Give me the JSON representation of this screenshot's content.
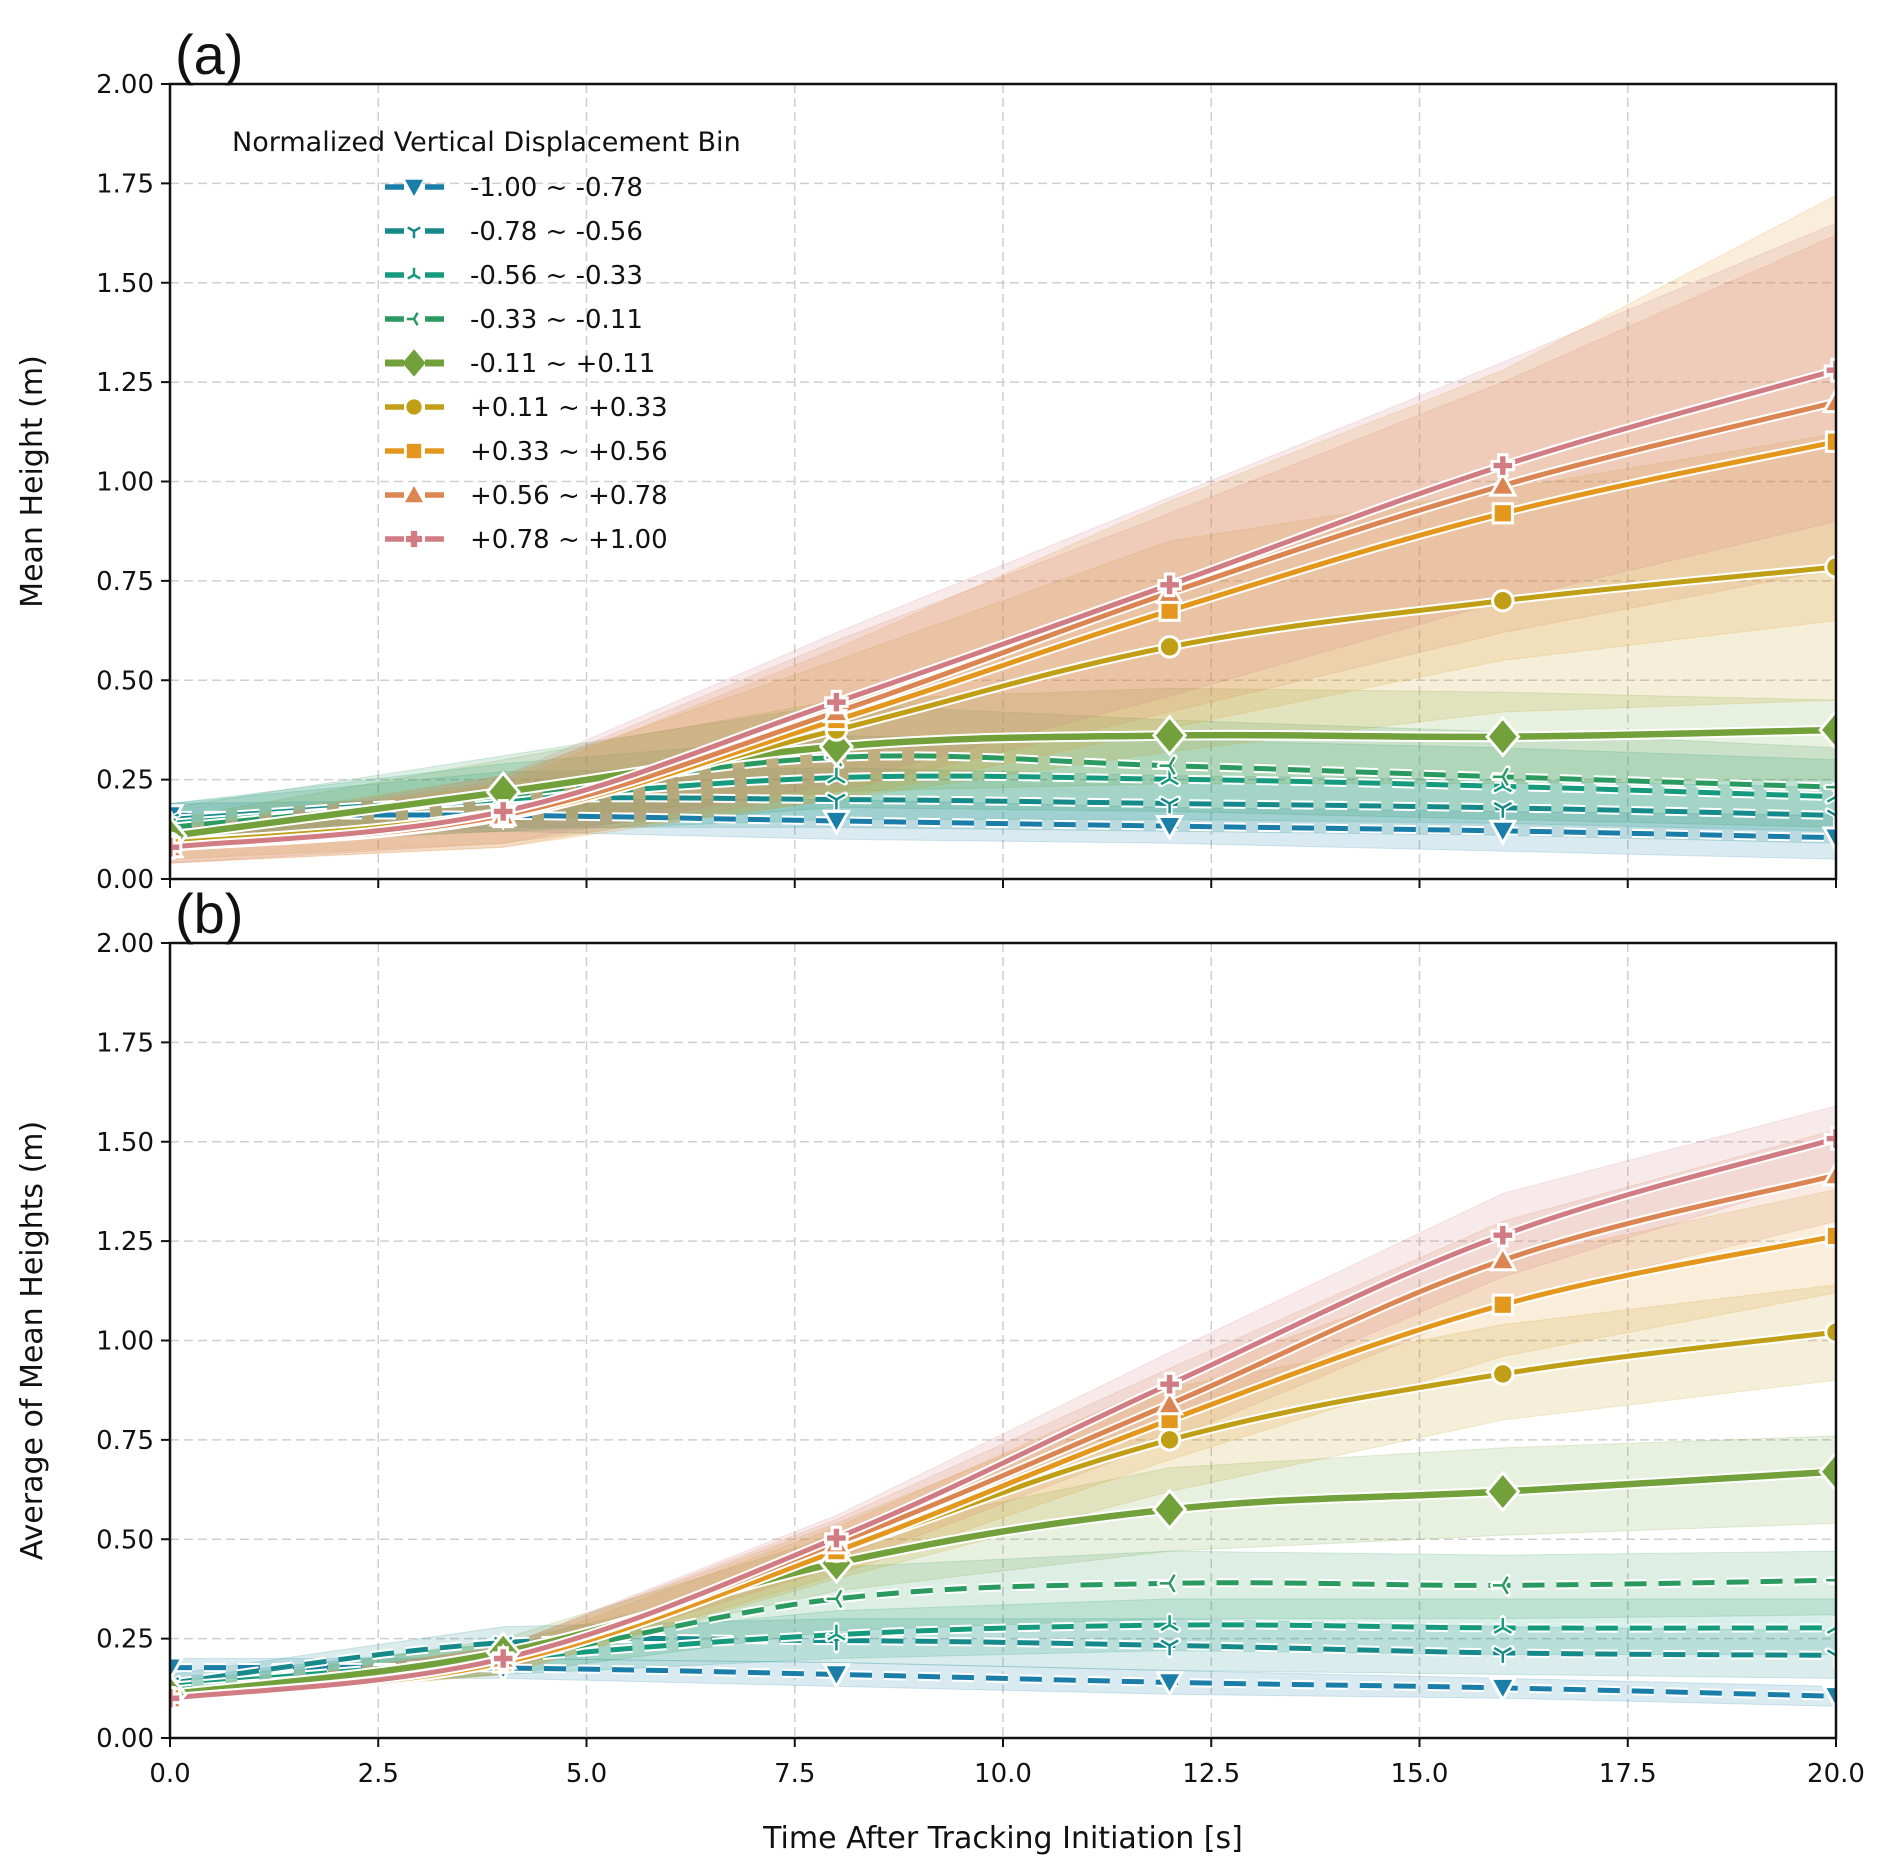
{
  "chart_data": [
    {
      "panel_label": "(a)",
      "type": "line",
      "ylabel": "Mean Height (m)",
      "xlabel": "",
      "xlim": [
        0,
        20
      ],
      "ylim": [
        0,
        2
      ],
      "xticks": [
        "0.0",
        "2.5",
        "5.0",
        "7.5",
        "10.0",
        "12.5",
        "15.0",
        "17.5",
        "20.0"
      ],
      "xtick_labels_visible": false,
      "yticks": [
        "0.00",
        "0.25",
        "0.50",
        "0.75",
        "1.00",
        "1.25",
        "1.50",
        "1.75",
        "2.00"
      ],
      "grid": true,
      "legend": {
        "title": "Normalized Vertical Displacement Bin",
        "placement": "top-left"
      },
      "x": [
        0,
        4,
        8,
        12,
        16,
        20
      ],
      "series": [
        {
          "name": "-1.00 ~ -0.78",
          "color": "#1b7ea8",
          "marker": "triangle-down",
          "style": "dashed",
          "values": [
            0.16,
            0.16,
            0.146,
            0.133,
            0.121,
            0.104
          ],
          "ci_low": [
            0.12,
            0.12,
            0.1,
            0.09,
            0.07,
            0.05
          ],
          "ci_high": [
            0.19,
            0.2,
            0.2,
            0.18,
            0.17,
            0.16
          ]
        },
        {
          "name": "-0.78 ~ -0.56",
          "color": "#168a8a",
          "marker": "tri-down",
          "style": "dashed",
          "values": [
            0.15,
            0.2,
            0.2,
            0.19,
            0.179,
            0.16
          ],
          "ci_low": [
            0.1,
            0.13,
            0.13,
            0.12,
            0.11,
            0.09
          ],
          "ci_high": [
            0.19,
            0.27,
            0.28,
            0.26,
            0.25,
            0.23
          ]
        },
        {
          "name": "-0.56 ~ -0.33",
          "color": "#159a7e",
          "marker": "tri-up",
          "style": "dashed",
          "values": [
            0.14,
            0.2,
            0.255,
            0.251,
            0.233,
            0.207
          ],
          "ci_low": [
            0.09,
            0.12,
            0.15,
            0.15,
            0.14,
            0.12
          ],
          "ci_high": [
            0.19,
            0.29,
            0.36,
            0.35,
            0.33,
            0.3
          ]
        },
        {
          "name": "-0.33 ~ -0.11",
          "color": "#2a9a60",
          "marker": "tri-left",
          "style": "dashed",
          "values": [
            0.13,
            0.21,
            0.306,
            0.285,
            0.257,
            0.231
          ],
          "ci_low": [
            0.08,
            0.12,
            0.18,
            0.17,
            0.15,
            0.13
          ],
          "ci_high": [
            0.18,
            0.31,
            0.44,
            0.4,
            0.37,
            0.33
          ]
        },
        {
          "name": "-0.11 ~ +0.11",
          "color": "#72a03a",
          "marker": "diamond",
          "style": "solid",
          "values": [
            0.108,
            0.219,
            0.333,
            0.361,
            0.358,
            0.375
          ],
          "ci_low": [
            0.07,
            0.14,
            0.22,
            0.24,
            0.24,
            0.25
          ],
          "ci_high": [
            0.15,
            0.3,
            0.45,
            0.48,
            0.47,
            0.45
          ]
        },
        {
          "name": "+0.11 ~ +0.33",
          "color": "#c09e15",
          "marker": "circle",
          "style": "solid",
          "values": [
            0.09,
            0.17,
            0.375,
            0.584,
            0.7,
            0.785
          ],
          "ci_low": [
            0.05,
            0.09,
            0.2,
            0.32,
            0.42,
            0.45
          ],
          "ci_high": [
            0.13,
            0.26,
            0.55,
            0.85,
            0.98,
            1.12
          ]
        },
        {
          "name": "+0.33 ~ +0.56",
          "color": "#e3971d",
          "marker": "square",
          "style": "solid",
          "values": [
            0.08,
            0.156,
            0.4,
            0.675,
            0.92,
            1.1
          ],
          "ci_low": [
            0.04,
            0.08,
            0.2,
            0.38,
            0.55,
            0.65
          ],
          "ci_high": [
            0.12,
            0.24,
            0.58,
            0.95,
            1.28,
            1.72
          ]
        },
        {
          "name": "+0.56 ~ +0.78",
          "color": "#db8552",
          "marker": "triangle-up",
          "style": "solid",
          "values": [
            0.08,
            0.16,
            0.42,
            0.72,
            0.99,
            1.2
          ],
          "ci_low": [
            0.04,
            0.08,
            0.22,
            0.42,
            0.62,
            0.78
          ],
          "ci_high": [
            0.12,
            0.25,
            0.6,
            0.92,
            1.25,
            1.62
          ]
        },
        {
          "name": "+0.78 ~ +1.00",
          "color": "#d17b82",
          "marker": "plus",
          "style": "solid",
          "values": [
            0.08,
            0.17,
            0.445,
            0.74,
            1.04,
            1.28
          ],
          "ci_low": [
            0.04,
            0.09,
            0.24,
            0.46,
            0.7,
            0.9
          ],
          "ci_high": [
            0.12,
            0.26,
            0.62,
            0.96,
            1.3,
            1.65
          ]
        }
      ]
    },
    {
      "panel_label": "(b)",
      "type": "line",
      "ylabel": "Average of Mean Heights (m)",
      "xlabel": "Time After Tracking Initiation [s]",
      "xlim": [
        0,
        20
      ],
      "ylim": [
        0,
        2
      ],
      "xticks": [
        "0.0",
        "2.5",
        "5.0",
        "7.5",
        "10.0",
        "12.5",
        "15.0",
        "17.5",
        "20.0"
      ],
      "xtick_labels_visible": true,
      "yticks": [
        "0.00",
        "0.25",
        "0.50",
        "0.75",
        "1.00",
        "1.25",
        "1.50",
        "1.75",
        "2.00"
      ],
      "grid": true,
      "x": [
        0,
        4,
        8,
        12,
        16,
        20
      ],
      "series": [
        {
          "name": "-1.00 ~ -0.78",
          "color": "#1b7ea8",
          "marker": "triangle-down",
          "style": "dashed",
          "values": [
            0.177,
            0.176,
            0.16,
            0.14,
            0.126,
            0.105
          ],
          "ci_low": [
            0.15,
            0.15,
            0.13,
            0.11,
            0.1,
            0.08
          ],
          "ci_high": [
            0.2,
            0.2,
            0.19,
            0.17,
            0.15,
            0.13
          ]
        },
        {
          "name": "-0.78 ~ -0.56",
          "color": "#168a8a",
          "marker": "tri-down",
          "style": "dashed",
          "values": [
            0.138,
            0.24,
            0.245,
            0.233,
            0.214,
            0.208
          ],
          "ci_low": [
            0.12,
            0.2,
            0.19,
            0.17,
            0.16,
            0.15
          ],
          "ci_high": [
            0.16,
            0.28,
            0.3,
            0.3,
            0.28,
            0.27
          ]
        },
        {
          "name": "-0.56 ~ -0.33",
          "color": "#159a7e",
          "marker": "tri-up",
          "style": "dashed",
          "values": [
            0.13,
            0.2,
            0.26,
            0.284,
            0.277,
            0.277
          ],
          "ci_low": [
            0.11,
            0.16,
            0.2,
            0.22,
            0.21,
            0.21
          ],
          "ci_high": [
            0.15,
            0.24,
            0.32,
            0.35,
            0.35,
            0.35
          ]
        },
        {
          "name": "-0.33 ~ -0.11",
          "color": "#2a9a60",
          "marker": "tri-left",
          "style": "dashed",
          "values": [
            0.12,
            0.2,
            0.35,
            0.389,
            0.384,
            0.397
          ],
          "ci_low": [
            0.1,
            0.16,
            0.27,
            0.3,
            0.3,
            0.31
          ],
          "ci_high": [
            0.14,
            0.24,
            0.43,
            0.47,
            0.46,
            0.47
          ]
        },
        {
          "name": "-0.11 ~ +0.11",
          "color": "#72a03a",
          "marker": "diamond",
          "style": "solid",
          "values": [
            0.11,
            0.216,
            0.44,
            0.575,
            0.62,
            0.67
          ],
          "ci_low": [
            0.1,
            0.19,
            0.37,
            0.47,
            0.51,
            0.54
          ],
          "ci_high": [
            0.12,
            0.25,
            0.51,
            0.68,
            0.73,
            0.76
          ]
        },
        {
          "name": "+0.11 ~ +0.33",
          "color": "#c09e15",
          "marker": "circle",
          "style": "solid",
          "values": [
            0.1,
            0.19,
            0.47,
            0.75,
            0.916,
            1.021
          ],
          "ci_low": [
            0.09,
            0.16,
            0.4,
            0.62,
            0.8,
            0.9
          ],
          "ci_high": [
            0.11,
            0.23,
            0.54,
            0.88,
            1.04,
            1.14
          ]
        },
        {
          "name": "+0.33 ~ +0.56",
          "color": "#e3971d",
          "marker": "square",
          "style": "solid",
          "values": [
            0.1,
            0.19,
            0.47,
            0.8,
            1.09,
            1.263
          ],
          "ci_low": [
            0.09,
            0.16,
            0.41,
            0.7,
            0.96,
            1.12
          ],
          "ci_high": [
            0.11,
            0.22,
            0.53,
            0.9,
            1.2,
            1.38
          ]
        },
        {
          "name": "+0.56 ~ +0.78",
          "color": "#db8552",
          "marker": "triangle-up",
          "style": "solid",
          "values": [
            0.1,
            0.2,
            0.49,
            0.84,
            1.202,
            1.416
          ],
          "ci_low": [
            0.09,
            0.17,
            0.43,
            0.75,
            1.1,
            1.3
          ],
          "ci_high": [
            0.11,
            0.23,
            0.55,
            0.93,
            1.3,
            1.53
          ]
        },
        {
          "name": "+0.78 ~ +1.00",
          "color": "#d17b82",
          "marker": "plus",
          "style": "solid",
          "values": [
            0.1,
            0.2,
            0.503,
            0.89,
            1.265,
            1.508
          ],
          "ci_low": [
            0.09,
            0.17,
            0.45,
            0.8,
            1.16,
            1.42
          ],
          "ci_high": [
            0.11,
            0.23,
            0.56,
            0.97,
            1.37,
            1.59
          ]
        }
      ]
    }
  ]
}
